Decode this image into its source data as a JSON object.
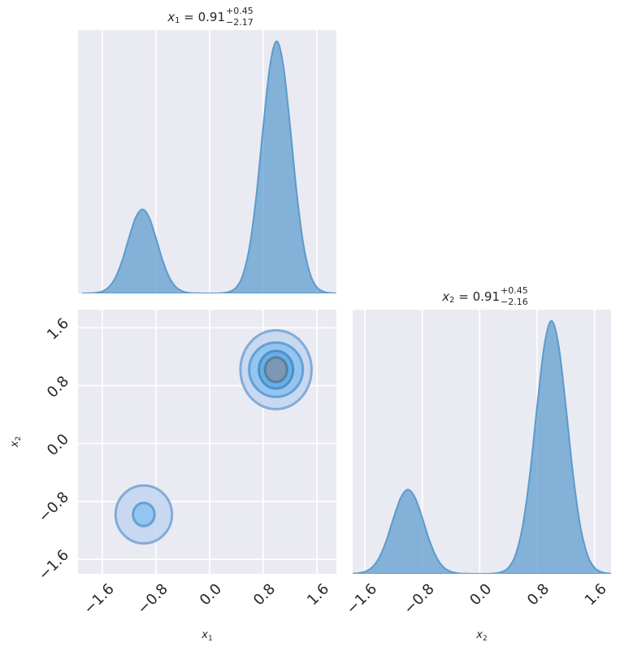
{
  "chart_data": [
    {
      "type": "area",
      "title": {
        "var": "x",
        "sub": "1",
        "main": " = 0.91",
        "sup": "+0.45",
        "low": "−2.17"
      },
      "x": [
        -1.9,
        -1.8,
        -1.7,
        -1.6,
        -1.5,
        -1.4,
        -1.3,
        -1.2,
        -1.1,
        -1.0,
        -0.9,
        -0.8,
        -0.7,
        -0.6,
        -0.5,
        -0.4,
        -0.3,
        -0.2,
        -0.1,
        0.0,
        0.1,
        0.2,
        0.3,
        0.4,
        0.5,
        0.6,
        0.7,
        0.8,
        0.9,
        1.0,
        1.1,
        1.2,
        1.3,
        1.4,
        1.5,
        1.6,
        1.7,
        1.8,
        1.9
      ],
      "values": [
        0,
        0.001,
        0.003,
        0.011,
        0.034,
        0.087,
        0.179,
        0.3,
        0.409,
        0.453,
        0.409,
        0.3,
        0.179,
        0.087,
        0.034,
        0.011,
        0.003,
        0.001,
        0,
        0,
        0,
        0.002,
        0.009,
        0.033,
        0.103,
        0.26,
        0.537,
        0.9,
        1.226,
        1.36,
        1.226,
        0.9,
        0.537,
        0.26,
        0.103,
        0.033,
        0.009,
        0.002,
        0
      ],
      "color": "#5b9bcc",
      "xlim": [
        -1.96,
        1.89
      ],
      "ylim": [
        0,
        1.42
      ],
      "xticks": [
        -1.6,
        -0.8,
        0.0,
        0.8,
        1.6
      ],
      "grid": true
    },
    {
      "type": "contour",
      "xlabel": {
        "var": "x",
        "sub": "1"
      },
      "ylabel": {
        "var": "x",
        "sub": "2"
      },
      "contours": [
        {
          "cx": 0.99,
          "cy": 1.02,
          "rx": 0.53,
          "ry": 0.545,
          "fill": "#c4d6f1",
          "stroke": "#72a2d2"
        },
        {
          "cx": 0.99,
          "cy": 1.02,
          "rx": 0.4,
          "ry": 0.375,
          "fill": "#8cc4f0",
          "stroke": "#5a97cf"
        },
        {
          "cx": 0.99,
          "cy": 1.02,
          "rx": 0.255,
          "ry": 0.26,
          "fill": "#62ade6",
          "stroke": "#4c86bf"
        },
        {
          "cx": 0.99,
          "cy": 1.02,
          "rx": 0.165,
          "ry": 0.17,
          "fill": "#7d96ae",
          "stroke": "#587898"
        },
        {
          "cx": -0.98,
          "cy": -0.98,
          "rx": 0.42,
          "ry": 0.4,
          "fill": "#c4d6f1",
          "stroke": "#72a2d2"
        },
        {
          "cx": -0.98,
          "cy": -0.98,
          "rx": 0.16,
          "ry": 0.16,
          "fill": "#8cc4f0",
          "stroke": "#5a97cf"
        }
      ],
      "xlim": [
        -1.96,
        1.89
      ],
      "ylim": [
        -1.8,
        1.85
      ],
      "xticks": [
        {
          "value": -1.6,
          "label": "−1.6"
        },
        {
          "value": -0.8,
          "label": "−0.8"
        },
        {
          "value": 0.0,
          "label": "0.0"
        },
        {
          "value": 0.8,
          "label": "0.8"
        },
        {
          "value": 1.6,
          "label": "1.6"
        }
      ],
      "yticks": [
        {
          "value": -1.6,
          "label": "−1.6"
        },
        {
          "value": -0.8,
          "label": "−0.8"
        },
        {
          "value": 0.0,
          "label": "0.0"
        },
        {
          "value": 0.8,
          "label": "0.8"
        },
        {
          "value": 1.6,
          "label": "1.6"
        }
      ],
      "grid": true
    },
    {
      "type": "area",
      "title": {
        "var": "x",
        "sub": "2",
        "main": " = 0.91",
        "sup": "+0.45",
        "low": "−2.16"
      },
      "xlabel": {
        "var": "x",
        "sub": "2"
      },
      "x": [
        -1.9,
        -1.8,
        -1.7,
        -1.6,
        -1.5,
        -1.4,
        -1.3,
        -1.2,
        -1.1,
        -1.0,
        -0.9,
        -0.8,
        -0.7,
        -0.6,
        -0.5,
        -0.4,
        -0.3,
        -0.2,
        -0.1,
        0.0,
        0.1,
        0.2,
        0.3,
        0.4,
        0.5,
        0.6,
        0.7,
        0.8,
        0.9,
        1.0,
        1.1,
        1.2,
        1.3,
        1.4,
        1.5,
        1.6,
        1.7,
        1.8,
        1.9
      ],
      "values": [
        0,
        0.001,
        0.003,
        0.011,
        0.034,
        0.087,
        0.179,
        0.3,
        0.409,
        0.453,
        0.409,
        0.3,
        0.179,
        0.087,
        0.034,
        0.011,
        0.003,
        0.001,
        0,
        0,
        0,
        0.002,
        0.009,
        0.033,
        0.103,
        0.26,
        0.537,
        0.9,
        1.226,
        1.36,
        1.226,
        0.9,
        0.537,
        0.26,
        0.103,
        0.033,
        0.009,
        0.002,
        0
      ],
      "color": "#5b9bcc",
      "xlim": [
        -1.77,
        1.83
      ],
      "ylim": [
        0,
        1.42
      ],
      "xticks": [
        {
          "value": -1.6,
          "label": "−1.6"
        },
        {
          "value": -0.8,
          "label": "−0.8"
        },
        {
          "value": 0.0,
          "label": "0.0"
        },
        {
          "value": 0.8,
          "label": "0.8"
        },
        {
          "value": 1.6,
          "label": "1.6"
        }
      ],
      "grid": true
    }
  ]
}
